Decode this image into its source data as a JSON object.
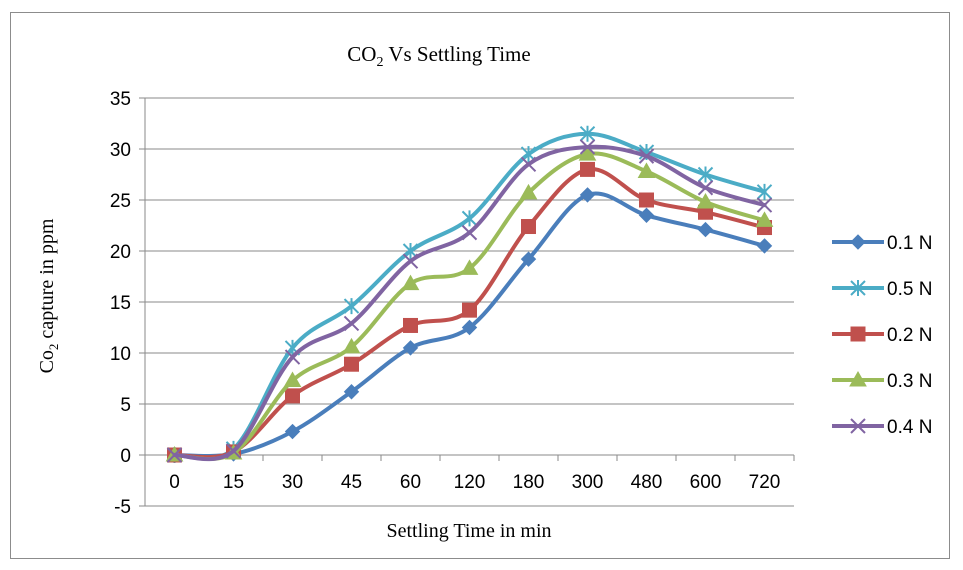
{
  "chart_data": {
    "type": "line",
    "title_main": "CO",
    "title_sub": "2",
    "title_rest": " Vs Settling Time",
    "xlabel": "Settling Time in min",
    "ylabel_main": "Co",
    "ylabel_sub": "2",
    "ylabel_rest": "  capture in ppm",
    "categories": [
      "0",
      "15",
      "30",
      "45",
      "60",
      "120",
      "180",
      "300",
      "480",
      "600",
      "720"
    ],
    "ylim": [
      -5,
      35
    ],
    "ytick_step": 5,
    "grid": true,
    "smooth": true,
    "legend_position": "right",
    "series": [
      {
        "name": "0.1 N",
        "color": "#4a7ebb",
        "marker": "diamond",
        "values": [
          0,
          0.1,
          2.3,
          6.2,
          10.5,
          12.5,
          19.2,
          25.5,
          23.5,
          22.1,
          20.5
        ]
      },
      {
        "name": "0.5 N",
        "color": "#4bacc6",
        "marker": "asterisk",
        "values": [
          0,
          0.6,
          10.5,
          14.6,
          20.0,
          23.2,
          29.5,
          31.5,
          29.7,
          27.5,
          25.8
        ]
      },
      {
        "name": "0.2 N",
        "color": "#c0504d",
        "marker": "square",
        "values": [
          0,
          0.3,
          5.8,
          8.9,
          12.7,
          14.2,
          22.4,
          28.0,
          25.0,
          23.8,
          22.3
        ]
      },
      {
        "name": "0.3 N",
        "color": "#9bbb59",
        "marker": "triangle",
        "values": [
          0,
          0.2,
          7.3,
          10.6,
          16.8,
          18.3,
          25.7,
          29.5,
          27.8,
          24.8,
          23.0
        ]
      },
      {
        "name": "0.4 N",
        "color": "#8064a2",
        "marker": "x",
        "values": [
          0,
          0.4,
          9.6,
          12.9,
          19.0,
          21.8,
          28.5,
          30.2,
          29.3,
          26.2,
          24.5
        ]
      }
    ]
  }
}
